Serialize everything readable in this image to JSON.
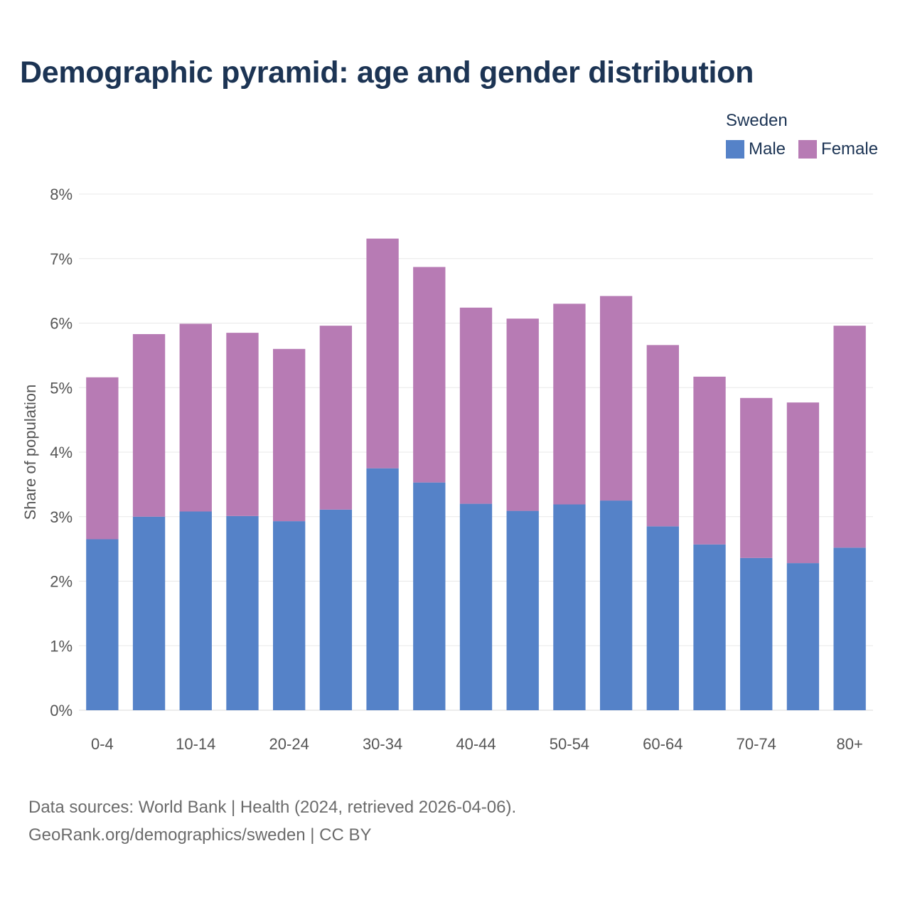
{
  "title": "Demographic pyramid: age and gender distribution",
  "legend": {
    "title": "Sweden",
    "items": [
      {
        "label": "Male",
        "color": "#5582c8"
      },
      {
        "label": "Female",
        "color": "#b77bb4"
      }
    ]
  },
  "footer": {
    "line1": "Data sources: World Bank | Health (2024, retrieved 2026-04-06).",
    "line2": "GeoRank.org/demographics/sweden | CC BY"
  },
  "chart_data": {
    "type": "bar",
    "stacked": true,
    "title": "Demographic pyramid: age and gender distribution",
    "ylabel": "Share of population",
    "xlabel": "",
    "ylim": [
      0,
      8
    ],
    "yticks": [
      "0%",
      "1%",
      "2%",
      "3%",
      "4%",
      "5%",
      "6%",
      "7%",
      "8%"
    ],
    "categories": [
      "0-4",
      "5-9",
      "10-14",
      "15-19",
      "20-24",
      "25-29",
      "30-34",
      "35-39",
      "40-44",
      "45-49",
      "50-54",
      "55-59",
      "60-64",
      "65-69",
      "70-74",
      "75-79",
      "80+"
    ],
    "xtick_labels": [
      "0-4",
      "10-14",
      "20-24",
      "30-34",
      "40-44",
      "50-54",
      "60-64",
      "70-74",
      "80+"
    ],
    "series": [
      {
        "name": "Male",
        "color": "#5582c8",
        "values": [
          2.65,
          3.0,
          3.08,
          3.01,
          2.93,
          3.11,
          3.75,
          3.53,
          3.2,
          3.09,
          3.19,
          3.25,
          2.85,
          2.57,
          2.36,
          2.28,
          2.52
        ]
      },
      {
        "name": "Female",
        "color": "#b77bb4",
        "values": [
          2.51,
          2.83,
          2.91,
          2.84,
          2.67,
          2.85,
          3.56,
          3.34,
          3.04,
          2.98,
          3.11,
          3.17,
          2.81,
          2.6,
          2.48,
          2.49,
          3.44
        ]
      }
    ]
  }
}
